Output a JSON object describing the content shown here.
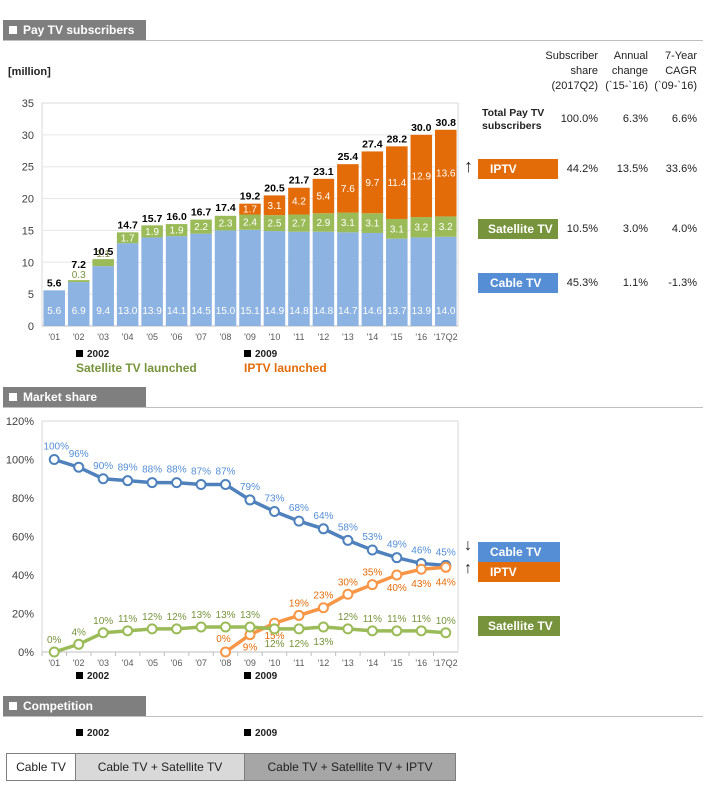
{
  "sections": {
    "subscribers": "Pay TV subscribers",
    "market_share": "Market share",
    "competition": "Competition"
  },
  "unit": "[million]",
  "markers": {
    "m2002": "2002",
    "m2009": "2009",
    "sat_launch": "Satellite TV launched",
    "iptv_launch": "IPTV launched"
  },
  "table": {
    "col1": [
      "Subscriber",
      "share",
      "(2017Q2)"
    ],
    "col2": [
      "Annual",
      "change",
      "(`15-`16)"
    ],
    "col3": [
      "7-Year",
      "CAGR",
      "(`09-`16)"
    ],
    "rows": [
      {
        "label": "Total Pay TV subscribers",
        "share": "100.0%",
        "change": "6.3%",
        "cagr": "6.6%"
      },
      {
        "label": "IPTV",
        "share": "44.2%",
        "change": "13.5%",
        "cagr": "33.6%"
      },
      {
        "label": "Satellite TV",
        "share": "10.5%",
        "change": "3.0%",
        "cagr": "4.0%"
      },
      {
        "label": "Cable TV",
        "share": "45.3%",
        "change": "1.1%",
        "cagr": "-1.3%"
      }
    ]
  },
  "share_legend": {
    "cable": "Cable TV",
    "iptv": "IPTV",
    "satellite": "Satellite TV"
  },
  "competition": [
    "Cable TV",
    "Cable TV + Satellite TV",
    "Cable TV + Satellite TV + IPTV"
  ],
  "colors": {
    "cable": "#8db3e2",
    "satellite": "#9bbb59",
    "iptv": "#e36c09",
    "cable_line": "#4f81bd",
    "iptv_line": "#f79646",
    "sat_line": "#9bbb59",
    "cable_label": "#558ed5",
    "iptv_label": "#e36c09",
    "sat_label": "#77933c",
    "header": "#7f7f7f"
  },
  "chart_data": [
    {
      "type": "bar",
      "stacked": true,
      "ylabel": "[million]",
      "ylim": [
        0,
        35
      ],
      "yticks": [
        0,
        5,
        10,
        15,
        20,
        25,
        30,
        35
      ],
      "categories": [
        "'01",
        "'02",
        "'03",
        "'04",
        "'05",
        "'06",
        "'07",
        "'08",
        "'09",
        "'10",
        "'11",
        "'12",
        "'13",
        "'14",
        "'15",
        "'16",
        "'17Q2"
      ],
      "totals": [
        "5.6",
        "7.2",
        "10.5",
        "14.7",
        "15.7",
        "16.0",
        "16.7",
        "17.4",
        "19.2",
        "20.5",
        "21.7",
        "23.1",
        "25.4",
        "27.4",
        "28.2",
        "30.0",
        "30.8"
      ],
      "series": [
        {
          "name": "Cable TV",
          "values": [
            5.6,
            6.9,
            9.4,
            13.0,
            13.9,
            14.1,
            14.5,
            15.0,
            15.1,
            14.9,
            14.8,
            14.8,
            14.7,
            14.6,
            13.7,
            13.9,
            14.0
          ]
        },
        {
          "name": "Satellite TV",
          "values": [
            0,
            0.3,
            1.1,
            1.7,
            1.9,
            1.9,
            2.2,
            2.3,
            2.4,
            2.5,
            2.7,
            2.9,
            3.1,
            3.1,
            3.1,
            3.2,
            3.2
          ]
        },
        {
          "name": "IPTV",
          "values": [
            0,
            0,
            0,
            0,
            0,
            0,
            0,
            0,
            1.7,
            3.1,
            4.2,
            5.4,
            7.6,
            9.7,
            11.4,
            12.9,
            13.6
          ]
        }
      ]
    },
    {
      "type": "line",
      "ylim": [
        0,
        120
      ],
      "yticks": [
        "0%",
        "20%",
        "40%",
        "60%",
        "80%",
        "100%",
        "120%"
      ],
      "categories": [
        "'01",
        "'02",
        "'03",
        "'04",
        "'05",
        "'06",
        "'07",
        "'08",
        "'09",
        "'10",
        "'11",
        "'12",
        "'13",
        "'14",
        "'15",
        "'16",
        "'17Q2"
      ],
      "series": [
        {
          "name": "Cable TV",
          "values": [
            100,
            96,
            90,
            89,
            88,
            88,
            87,
            87,
            79,
            73,
            68,
            64,
            58,
            53,
            49,
            46,
            45
          ]
        },
        {
          "name": "IPTV",
          "values": [
            null,
            null,
            null,
            null,
            null,
            null,
            null,
            0,
            9,
            15,
            19,
            23,
            30,
            35,
            40,
            43,
            44
          ]
        },
        {
          "name": "Satellite TV",
          "values": [
            0,
            4,
            10,
            11,
            12,
            12,
            13,
            13,
            13,
            12,
            12,
            13,
            12,
            11,
            11,
            11,
            10
          ]
        }
      ]
    }
  ]
}
